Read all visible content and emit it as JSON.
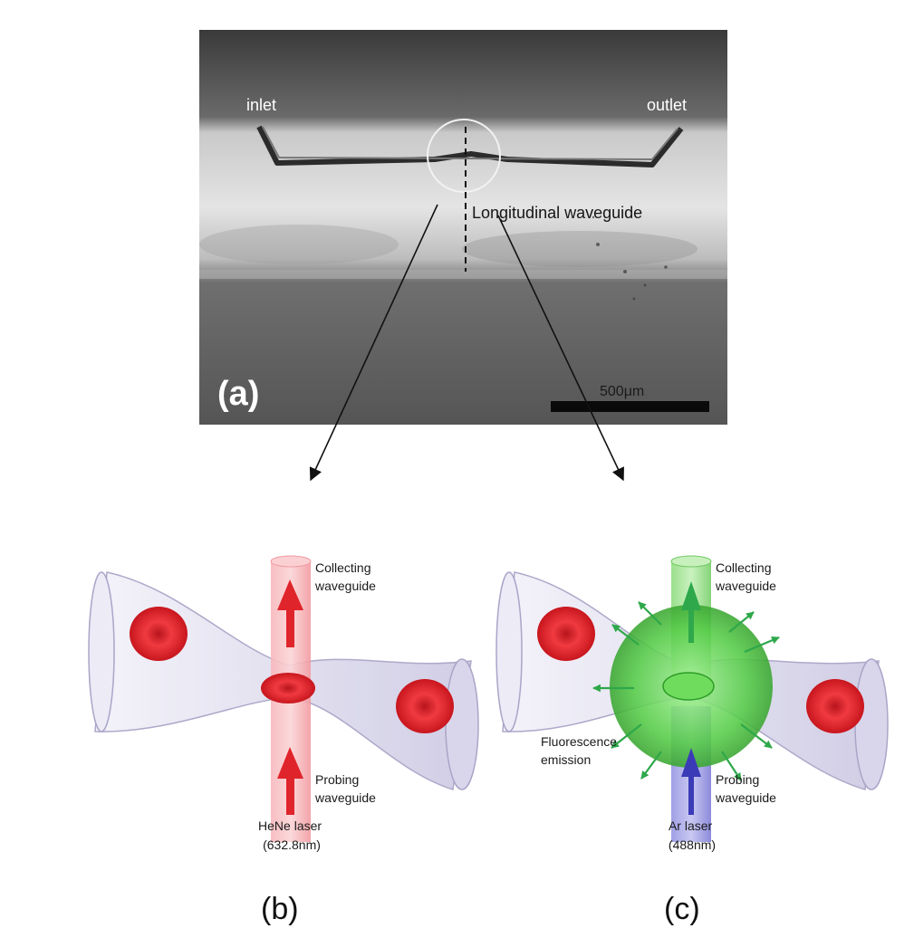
{
  "panel_a": {
    "inlet_label": "inlet",
    "outlet_label": "outlet",
    "waveguide_label": "Longitudinal waveguide",
    "panel_label": "(a)",
    "scale_label": "500μm"
  },
  "panel_b": {
    "top_label_1": "Collecting",
    "top_label_2": "waveguide",
    "bottom_label_1": "Probing",
    "bottom_label_2": "waveguide",
    "laser_label_1": "HeNe laser",
    "laser_label_2": "(632.8nm)",
    "panel_label": "(b)"
  },
  "panel_c": {
    "top_label_1": "Collecting",
    "top_label_2": "waveguide",
    "fluor_label_1": "Fluorescence",
    "fluor_label_2": "emission",
    "bottom_label_1": "Probing",
    "bottom_label_2": "waveguide",
    "laser_label_1": "Ar laser",
    "laser_label_2": "(488nm)",
    "panel_label": "(c)"
  },
  "colors": {
    "probe_red": "#e0242b",
    "probe_green": "#3fc23a",
    "probe_blue": "#5a5bd0",
    "channel_lilac": "#d8d5ea"
  }
}
